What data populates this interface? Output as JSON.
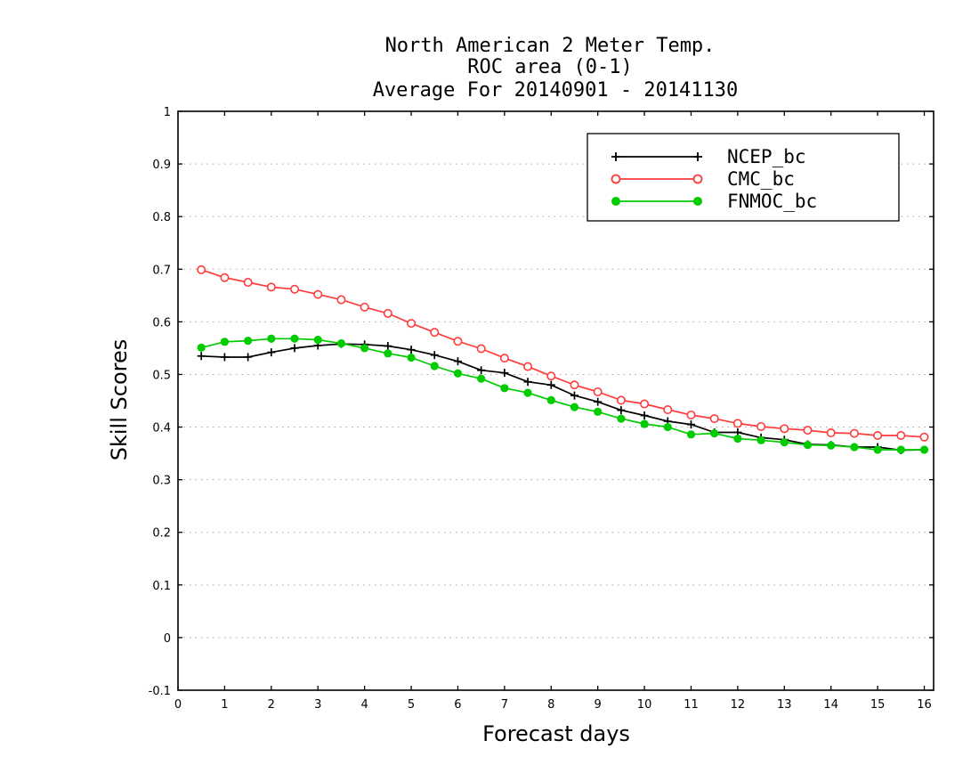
{
  "chart_data": {
    "type": "line",
    "title": [
      "North American 2 Meter Temp.",
      "ROC area (0-1)",
      "Average For 20140901 - 20141130"
    ],
    "xlabel": "Forecast days",
    "ylabel": "Skill Scores",
    "xlim": [
      0,
      16.2
    ],
    "ylim": [
      -0.1,
      1
    ],
    "x_ticks": [
      0,
      1,
      2,
      3,
      4,
      5,
      6,
      7,
      8,
      9,
      10,
      11,
      12,
      13,
      14,
      15,
      16
    ],
    "y_ticks": [
      -0.1,
      0,
      0.1,
      0.2,
      0.3,
      0.4,
      0.5,
      0.6,
      0.7,
      0.8,
      0.9,
      1
    ],
    "y_tick_labels": [
      "-0.1",
      "0",
      "0.1",
      "0.2",
      "0.3",
      "0.4",
      "0.5",
      "0.6",
      "0.7",
      "0.8",
      "0.9",
      "1"
    ],
    "grid": "horizontal-dotted",
    "legend_position": "top-right",
    "x": [
      0.5,
      1,
      1.5,
      2,
      2.5,
      3,
      3.5,
      4,
      4.5,
      5,
      5.5,
      6,
      6.5,
      7,
      7.5,
      8,
      8.5,
      9,
      9.5,
      10,
      10.5,
      11,
      11.5,
      12,
      12.5,
      13,
      13.5,
      14,
      14.5,
      15,
      15.5,
      16
    ],
    "series": [
      {
        "name": "NCEP_bc",
        "color": "#000000",
        "marker": "plus",
        "values": [
          0.535,
          0.533,
          0.533,
          0.542,
          0.55,
          0.555,
          0.558,
          0.557,
          0.554,
          0.547,
          0.537,
          0.525,
          0.508,
          0.503,
          0.486,
          0.48,
          0.46,
          0.448,
          0.432,
          0.422,
          0.411,
          0.405,
          0.39,
          0.39,
          0.38,
          0.376,
          0.367,
          0.366,
          0.362,
          0.362,
          0.356,
          0.357
        ]
      },
      {
        "name": "CMC_bc",
        "color": "#ff3b3b",
        "marker": "open-circle",
        "values": [
          0.699,
          0.684,
          0.675,
          0.666,
          0.662,
          0.652,
          0.642,
          0.628,
          0.616,
          0.597,
          0.58,
          0.563,
          0.549,
          0.531,
          0.515,
          0.497,
          0.48,
          0.467,
          0.451,
          0.444,
          0.433,
          0.423,
          0.416,
          0.407,
          0.401,
          0.397,
          0.394,
          0.389,
          0.388,
          0.384,
          0.384,
          0.381
        ]
      },
      {
        "name": "FNMOC_bc",
        "color": "#00cc00",
        "marker": "filled-circle",
        "values": [
          0.551,
          0.562,
          0.564,
          0.568,
          0.568,
          0.566,
          0.559,
          0.55,
          0.54,
          0.532,
          0.516,
          0.502,
          0.492,
          0.474,
          0.465,
          0.451,
          0.438,
          0.429,
          0.416,
          0.406,
          0.4,
          0.386,
          0.388,
          0.378,
          0.375,
          0.371,
          0.366,
          0.365,
          0.362,
          0.357,
          0.357,
          0.357
        ]
      }
    ]
  }
}
